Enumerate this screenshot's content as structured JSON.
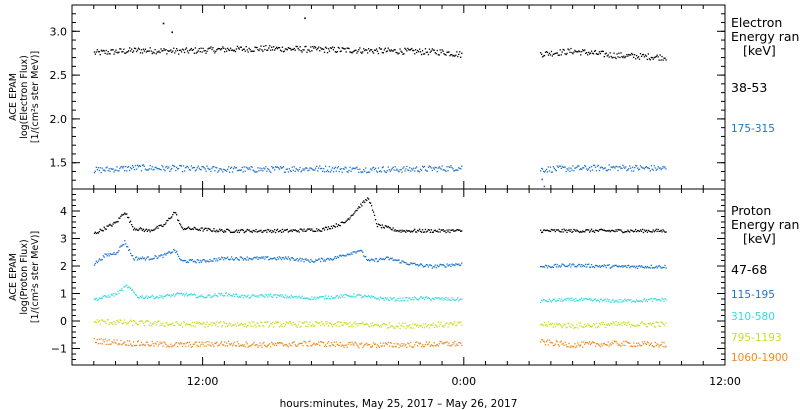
{
  "chart_data": [
    {
      "type": "scatter",
      "panel": "electron",
      "ylabel": [
        "ACE EPAM",
        "log(Electron Flux)",
        "[1/(cm²s ster MeV)]"
      ],
      "ylim": [
        1.2,
        3.3
      ],
      "yticks": [
        1.5,
        2.0,
        2.5,
        3.0
      ],
      "ytick_labels": [
        "1.5",
        "2.0",
        "2.5",
        "3.0"
      ],
      "xlim_hours": [
        6,
        36
      ],
      "legend_title": [
        "Electron",
        "Energy ran",
        "[keV]"
      ],
      "series": [
        {
          "name": "38-53",
          "color": "#000000",
          "segments": [
            [
              7,
              23.9
            ],
            [
              27.5,
              33.3
            ]
          ],
          "points": [
            [
              7,
              2.76
            ],
            [
              9,
              2.79
            ],
            [
              11,
              2.78
            ],
            [
              13,
              2.8
            ],
            [
              15,
              2.81
            ],
            [
              17,
              2.8
            ],
            [
              19,
              2.79
            ],
            [
              21,
              2.78
            ],
            [
              23,
              2.77
            ],
            [
              23.9,
              2.74
            ],
            [
              27.6,
              2.75
            ],
            [
              29,
              2.78
            ],
            [
              31,
              2.73
            ],
            [
              33.3,
              2.71
            ]
          ],
          "outliers": [
            [
              10.6,
              2.99
            ],
            [
              10.2,
              3.09
            ],
            [
              16.7,
              3.15
            ]
          ]
        },
        {
          "name": "175-315",
          "color": "#1e74c8",
          "segments": [
            [
              7,
              23.9
            ],
            [
              27.5,
              33.3
            ]
          ],
          "points": [
            [
              7,
              1.42
            ],
            [
              9,
              1.45
            ],
            [
              11,
              1.44
            ],
            [
              13,
              1.43
            ],
            [
              15,
              1.43
            ],
            [
              17,
              1.44
            ],
            [
              19,
              1.43
            ],
            [
              21,
              1.43
            ],
            [
              23,
              1.44
            ],
            [
              23.9,
              1.45
            ],
            [
              27.6,
              1.43
            ],
            [
              29,
              1.44
            ],
            [
              31,
              1.45
            ],
            [
              33.3,
              1.44
            ]
          ],
          "outliers": [
            [
              27.6,
              1.31
            ],
            [
              27.7,
              1.23
            ]
          ]
        }
      ]
    },
    {
      "type": "scatter",
      "panel": "proton",
      "ylabel": [
        "ACE EPAM",
        "log(Proton Flux)",
        "[1/(cm²s ster MeV)]"
      ],
      "ylim": [
        -1.6,
        4.8
      ],
      "yticks": [
        -1,
        0,
        1,
        2,
        3,
        4
      ],
      "ytick_labels": [
        "−1",
        "0",
        "1",
        "2",
        "3",
        "4"
      ],
      "xlim_hours": [
        6,
        36
      ],
      "xticks": [
        "12:00",
        "0:00",
        "12:00"
      ],
      "xtick_hours": [
        12,
        24,
        36
      ],
      "xlabel": "hours:minutes, May 25, 2017 – May 26, 2017",
      "legend_title": [
        "Proton",
        "Energy ran",
        "[keV]"
      ],
      "series": [
        {
          "name": "47-68",
          "color": "#000000",
          "segments": [
            [
              7,
              23.9
            ],
            [
              27.5,
              33.3
            ]
          ],
          "points": [
            [
              7,
              3.2
            ],
            [
              7.5,
              3.4
            ],
            [
              8,
              3.6
            ],
            [
              8.4,
              4.0
            ],
            [
              8.8,
              3.4
            ],
            [
              9.5,
              3.3
            ],
            [
              10.2,
              3.5
            ],
            [
              10.7,
              4.0
            ],
            [
              11,
              3.4
            ],
            [
              12,
              3.35
            ],
            [
              13,
              3.3
            ],
            [
              14.5,
              3.3
            ],
            [
              16,
              3.3
            ],
            [
              17.5,
              3.35
            ],
            [
              18.5,
              3.6
            ],
            [
              19.2,
              4.2
            ],
            [
              19.6,
              4.5
            ],
            [
              20.0,
              3.5
            ],
            [
              21,
              3.3
            ],
            [
              22,
              3.3
            ],
            [
              23,
              3.3
            ],
            [
              23.9,
              3.3
            ],
            [
              27.6,
              3.3
            ],
            [
              29,
              3.3
            ],
            [
              31,
              3.3
            ],
            [
              33.3,
              3.3
            ]
          ]
        },
        {
          "name": "115-195",
          "color": "#1e74c8",
          "segments": [
            [
              7,
              23.9
            ],
            [
              27.5,
              33.3
            ]
          ],
          "points": [
            [
              7,
              2.1
            ],
            [
              7.5,
              2.4
            ],
            [
              8,
              2.5
            ],
            [
              8.4,
              2.9
            ],
            [
              8.8,
              2.3
            ],
            [
              9.5,
              2.3
            ],
            [
              10.2,
              2.4
            ],
            [
              10.7,
              2.6
            ],
            [
              11,
              2.2
            ],
            [
              12,
              2.2
            ],
            [
              13,
              2.3
            ],
            [
              14,
              2.3
            ],
            [
              15,
              2.3
            ],
            [
              16,
              2.3
            ],
            [
              17,
              2.2
            ],
            [
              18,
              2.3
            ],
            [
              19.2,
              2.6
            ],
            [
              19.6,
              2.2
            ],
            [
              20.5,
              2.3
            ],
            [
              21.5,
              2.1
            ],
            [
              22.5,
              2.0
            ],
            [
              23.9,
              2.1
            ],
            [
              27.6,
              2.0
            ],
            [
              29,
              2.05
            ],
            [
              31,
              2.0
            ],
            [
              33.3,
              2.0
            ]
          ]
        },
        {
          "name": "310-580",
          "color": "#33dde0",
          "segments": [
            [
              7,
              23.9
            ],
            [
              27.5,
              33.3
            ]
          ],
          "points": [
            [
              7,
              0.8
            ],
            [
              8,
              1.0
            ],
            [
              8.5,
              1.3
            ],
            [
              9,
              0.9
            ],
            [
              10,
              0.9
            ],
            [
              11,
              1.0
            ],
            [
              12,
              0.9
            ],
            [
              13,
              1.0
            ],
            [
              14,
              0.9
            ],
            [
              15,
              0.95
            ],
            [
              16,
              0.9
            ],
            [
              17,
              0.85
            ],
            [
              18,
              0.9
            ],
            [
              19,
              0.95
            ],
            [
              20,
              0.85
            ],
            [
              21,
              0.8
            ],
            [
              22,
              0.85
            ],
            [
              23.9,
              0.8
            ],
            [
              27.6,
              0.75
            ],
            [
              29,
              0.8
            ],
            [
              31,
              0.75
            ],
            [
              33.3,
              0.8
            ]
          ]
        },
        {
          "name": "795-1193",
          "color": "#c8e01e",
          "segments": [
            [
              7,
              23.9
            ],
            [
              27.5,
              33.3
            ]
          ],
          "points": [
            [
              7,
              0.0
            ],
            [
              9,
              -0.05
            ],
            [
              11,
              -0.1
            ],
            [
              13,
              -0.1
            ],
            [
              15,
              -0.1
            ],
            [
              17,
              -0.1
            ],
            [
              19,
              -0.1
            ],
            [
              21,
              -0.15
            ],
            [
              23.9,
              -0.1
            ],
            [
              27.6,
              -0.1
            ],
            [
              29,
              -0.15
            ],
            [
              31,
              -0.1
            ],
            [
              33.3,
              -0.1
            ]
          ]
        },
        {
          "name": "1060-1900",
          "color": "#f08a1e",
          "segments": [
            [
              7,
              23.9
            ],
            [
              27.5,
              33.3
            ]
          ],
          "points": [
            [
              7,
              -0.7
            ],
            [
              9,
              -0.8
            ],
            [
              11,
              -0.85
            ],
            [
              13,
              -0.8
            ],
            [
              15,
              -0.85
            ],
            [
              17,
              -0.8
            ],
            [
              19,
              -0.85
            ],
            [
              21,
              -0.85
            ],
            [
              23.9,
              -0.8
            ],
            [
              27.6,
              -0.75
            ],
            [
              29,
              -0.85
            ],
            [
              31,
              -0.8
            ],
            [
              33.3,
              -0.85
            ]
          ]
        }
      ]
    }
  ]
}
